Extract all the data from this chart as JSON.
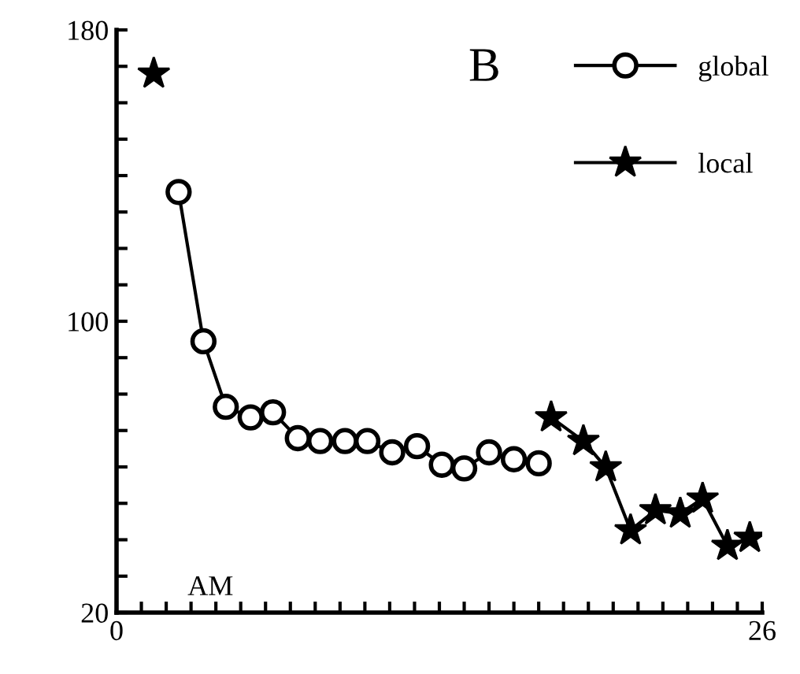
{
  "chart_data": {
    "type": "line",
    "title": "B",
    "series": [
      {
        "name": "global",
        "color": "#000000",
        "marker": "circle",
        "x": [
          2.5,
          3.5,
          4.4,
          5.4,
          6.3,
          7.3,
          8.2,
          9.2,
          10.1,
          11.1,
          12.1,
          13.1,
          14,
          15,
          16,
          17
        ],
        "values": [
          135.5,
          94.5,
          76.5,
          73.6,
          75,
          67.9,
          67.1,
          67.1,
          67.1,
          64,
          65.7,
          60.6,
          59.6,
          64,
          62.1,
          61
        ]
      },
      {
        "name": "local",
        "color": "#000000",
        "marker": "star",
        "x": [
          1.5,
          10,
          17.5,
          18.8,
          19.7,
          20.7,
          21.7,
          22.7,
          23.6,
          24.6,
          25.5
        ],
        "values": [
          168,
          null,
          73.6,
          67.1,
          59.9,
          42.6,
          48.1,
          47.2,
          51.3,
          38.3,
          40.5
        ]
      }
    ],
    "xlim": [
      0,
      26
    ],
    "ylim": [
      20,
      180
    ],
    "xticks": [
      0,
      {
        "value": 1,
        "label": null
      },
      {
        "value": 2,
        "label": null
      },
      {
        "value": 3,
        "label": null
      },
      {
        "value": 4,
        "label": null
      },
      {
        "value": 5,
        "label": null
      },
      {
        "value": 6,
        "label": null
      },
      {
        "value": 7,
        "label": null
      },
      {
        "value": 8,
        "label": null
      },
      {
        "value": 9,
        "label": null
      },
      {
        "value": 10,
        "label": null
      },
      {
        "value": 11,
        "label": null
      },
      {
        "value": 12,
        "label": null
      },
      {
        "value": 13,
        "label": null
      },
      {
        "value": 14,
        "label": null
      },
      {
        "value": 15,
        "label": null
      },
      {
        "value": 16,
        "label": null
      },
      {
        "value": 17,
        "label": null
      },
      {
        "value": 18,
        "label": null
      },
      {
        "value": 19,
        "label": null
      },
      {
        "value": 20,
        "label": null
      },
      {
        "value": 21,
        "label": null
      },
      {
        "value": 22,
        "label": null
      },
      {
        "value": 23,
        "label": null
      },
      {
        "value": 24,
        "label": null
      },
      {
        "value": 25,
        "label": null
      },
      26
    ],
    "yticks": [
      20,
      {
        "value": 30,
        "label": null
      },
      {
        "value": 40,
        "label": null
      },
      {
        "value": 50,
        "label": null
      },
      {
        "value": 60,
        "label": null
      },
      {
        "value": 70,
        "label": null
      },
      {
        "value": 80,
        "label": null
      },
      {
        "value": 90,
        "label": null
      },
      100,
      {
        "value": 110,
        "label": null
      },
      {
        "value": 120,
        "label": null
      },
      {
        "value": 130,
        "label": null
      },
      {
        "value": 140,
        "label": null
      },
      {
        "value": 150,
        "label": null
      },
      {
        "value": 160,
        "label": null
      },
      {
        "value": 170,
        "label": null
      },
      180
    ],
    "annotations": [
      "AM"
    ],
    "legend": "top right",
    "grid": false,
    "line_style": "solid"
  }
}
